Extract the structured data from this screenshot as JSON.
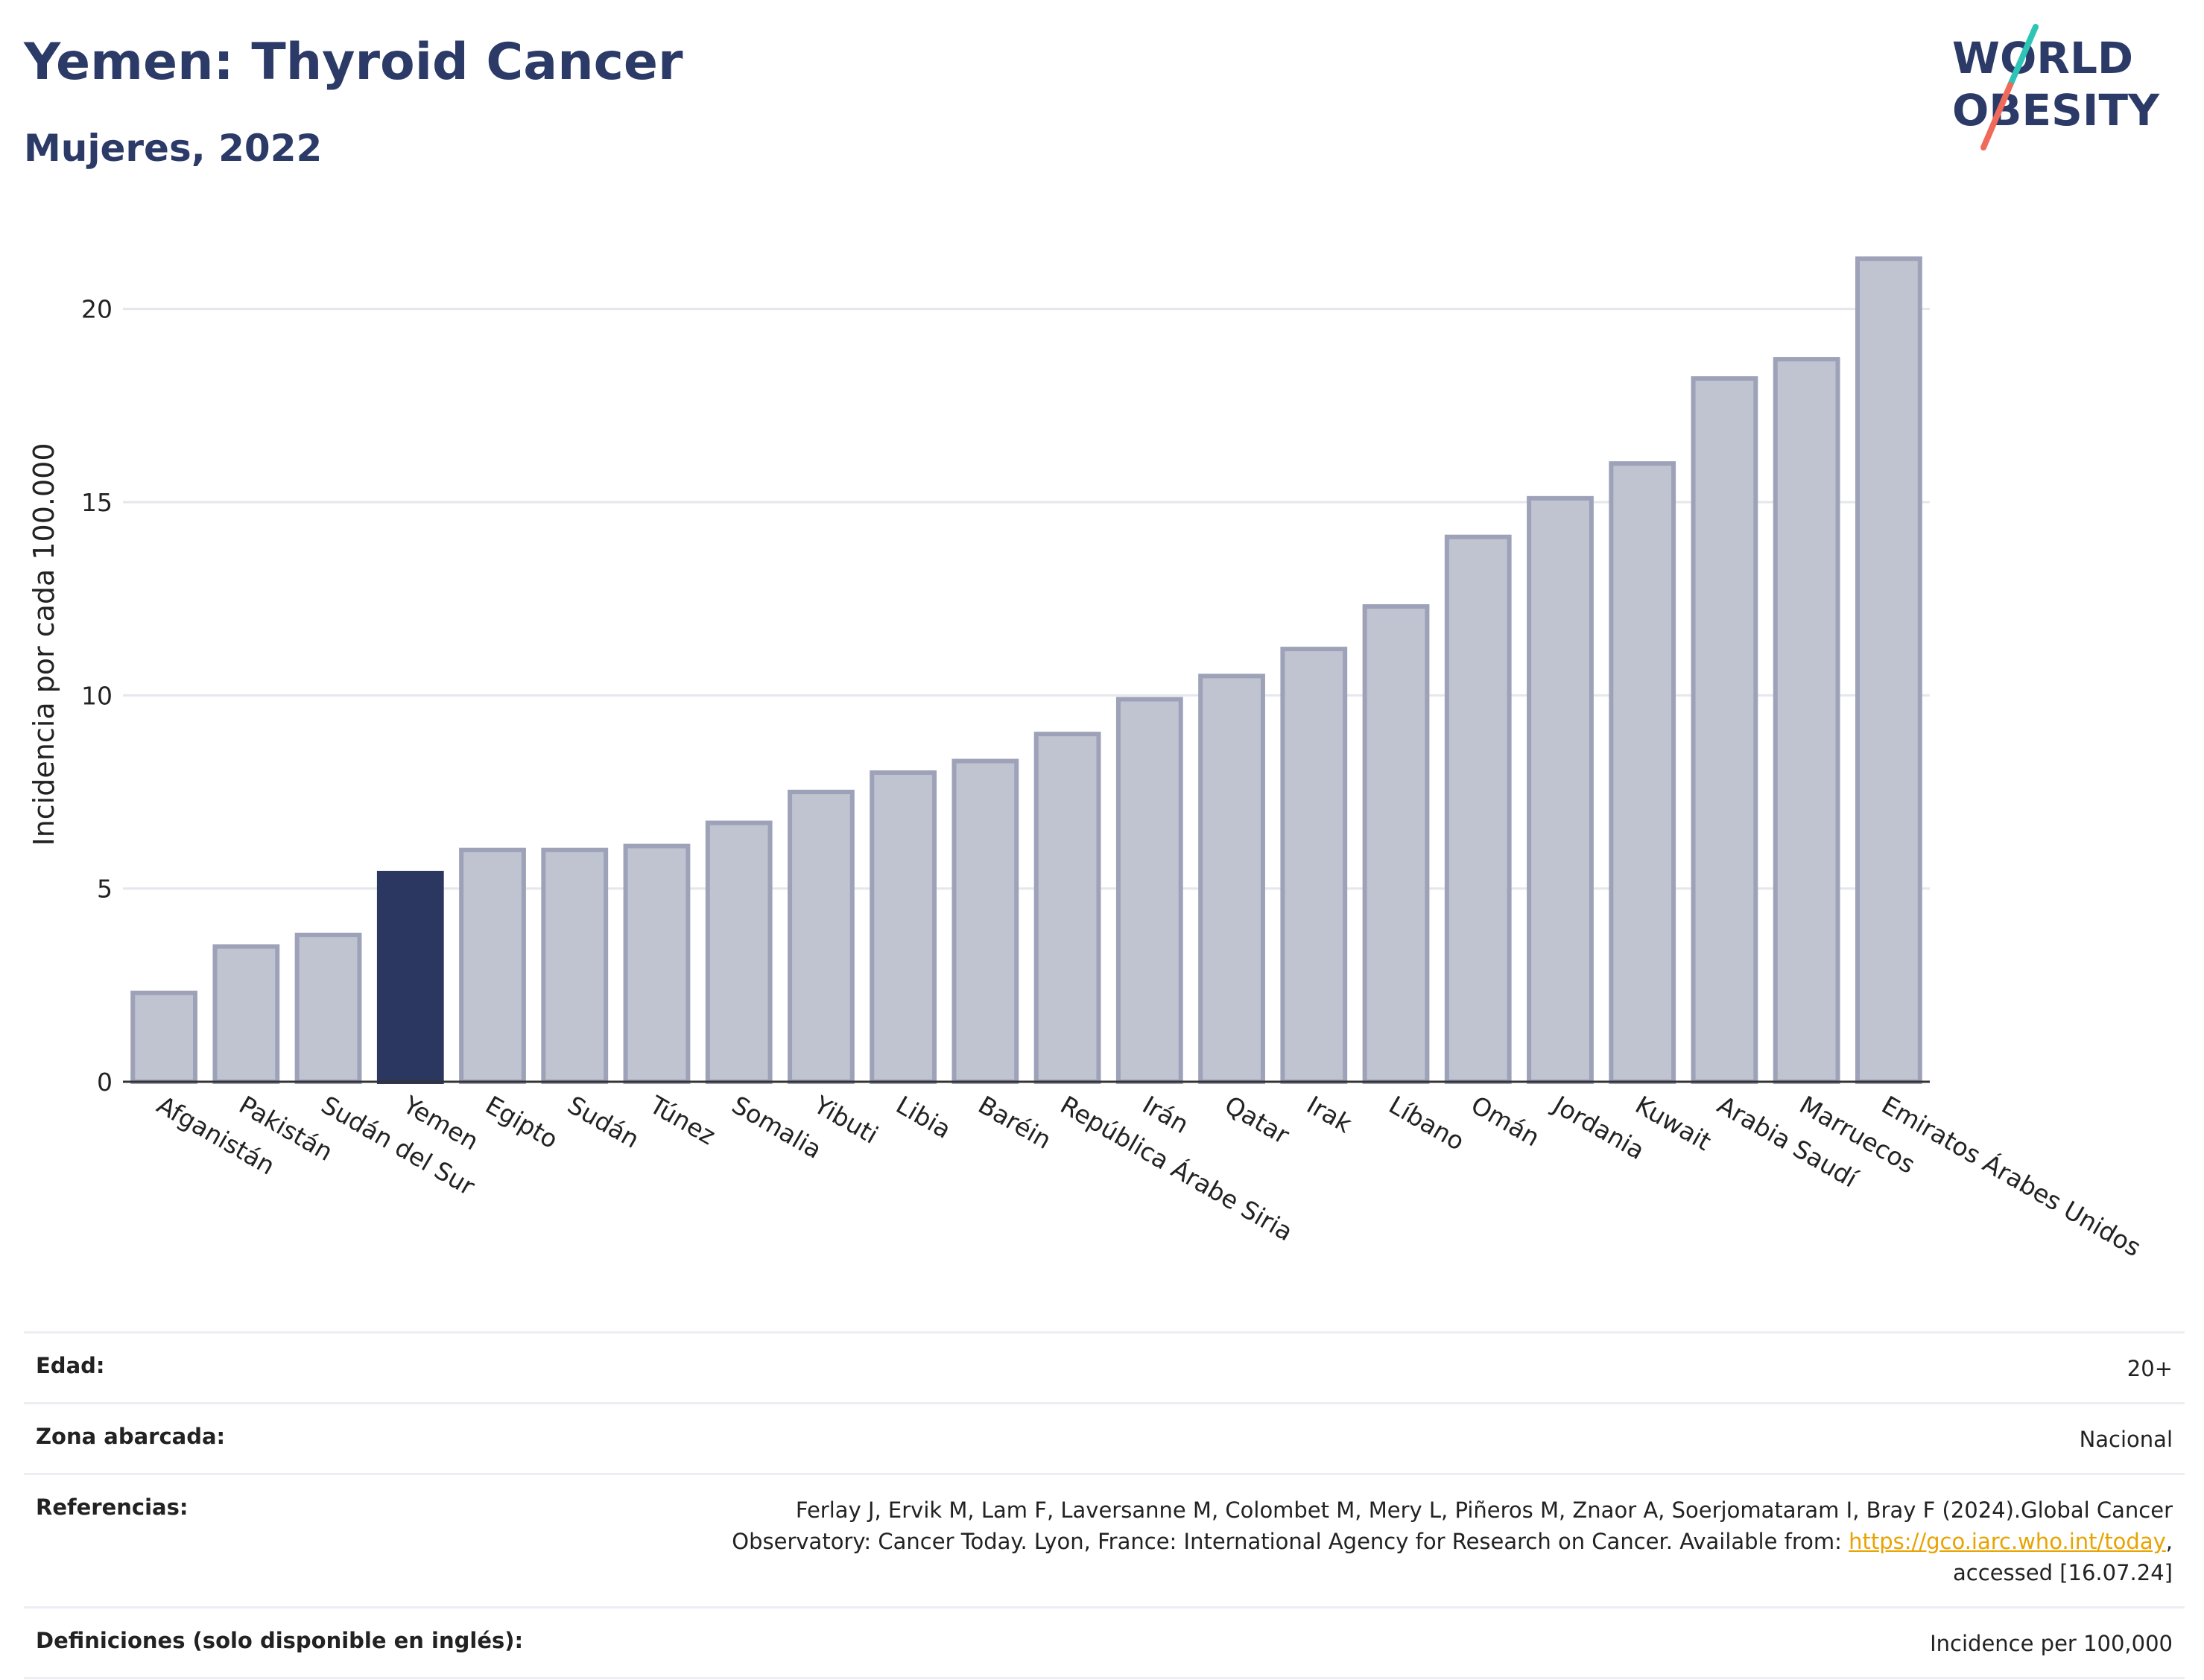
{
  "header": {
    "title": "Yemen: Thyroid Cancer",
    "subtitle": "Mujeres, 2022"
  },
  "logo": {
    "line1": "WORLD",
    "line2": "OBESITY",
    "colors": {
      "text": "#2b3a67",
      "slash_top": "#2ec4b6",
      "slash_bottom": "#ef6a5a"
    }
  },
  "chart_data": {
    "type": "bar",
    "ylabel": "Incidencia por cada 100.000",
    "ylim": [
      0,
      22.5
    ],
    "yticks": [
      0,
      5,
      10,
      15,
      20
    ],
    "grid": true,
    "highlight": "Yemen",
    "colors": {
      "bar": "#c0c3d0",
      "bar_border": "#9da2b8",
      "highlight": "#2b3760",
      "grid": "#e6e7ec",
      "axis": "#333333"
    },
    "categories": [
      "Afganistán",
      "Pakistán",
      "Sudán del Sur",
      "Yemen",
      "Egipto",
      "Sudán",
      "Túnez",
      "Somalia",
      "Yibuti",
      "Libia",
      "Baréin",
      "República Árabe Siria",
      "Irán",
      "Qatar",
      "Irak",
      "Líbano",
      "Omán",
      "Jordania",
      "Kuwait",
      "Arabia Saudí",
      "Marruecos",
      "Emiratos Árabes Unidos"
    ],
    "values": [
      2.3,
      3.5,
      3.8,
      5.4,
      6.0,
      6.0,
      6.1,
      6.7,
      7.5,
      8.0,
      8.3,
      9.0,
      9.9,
      10.5,
      11.2,
      12.3,
      14.1,
      15.1,
      16.0,
      18.2,
      18.7,
      21.3
    ]
  },
  "info": {
    "rows": [
      {
        "label": "Edad:",
        "value": "20+"
      },
      {
        "label": "Zona abarcada:",
        "value": "Nacional"
      },
      {
        "label": "Referencias:",
        "value_line1": "Ferlay J, Ervik M, Lam F, Laversanne M, Colombet M, Mery L, Piñeros M, Znaor A, Soerjomataram I, Bray F (2024).Global Cancer",
        "value_line2_pre": "Observatory: Cancer Today. Lyon, France: International Agency for Research on Cancer. Available from: ",
        "link": "https://gco.iarc.who.int/today",
        "value_line2_post": ",",
        "value_line3": "accessed [16.07.24]"
      },
      {
        "label": "Definiciones (solo disponible en inglés):",
        "value": "Incidence per 100,000"
      }
    ]
  }
}
